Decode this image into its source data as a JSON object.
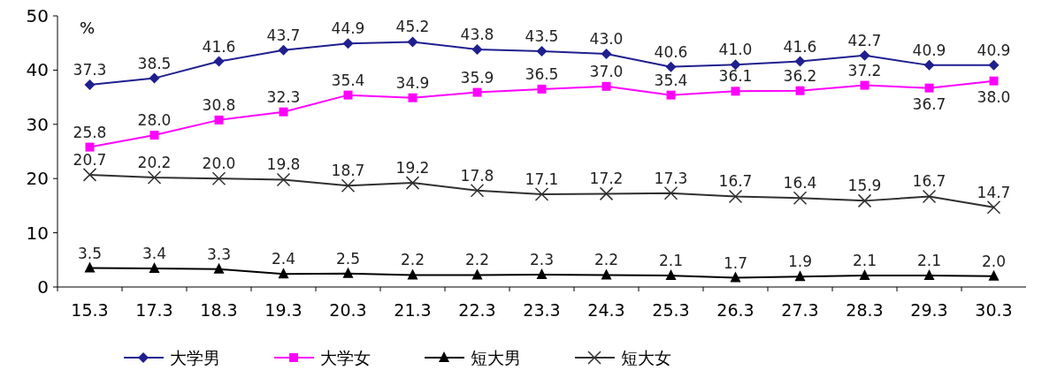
{
  "chart_data": {
    "type": "line",
    "categories": [
      "15.3",
      "17.3",
      "18.3",
      "19.3",
      "20.3",
      "21.3",
      "22.3",
      "23.3",
      "24.3",
      "25.3",
      "26.3",
      "27.3",
      "28.3",
      "29.3",
      "30.3"
    ],
    "ylim": [
      0,
      50
    ],
    "yticks": [
      0,
      10,
      20,
      30,
      40,
      50
    ],
    "legend": "bottom",
    "annotations": [
      "%"
    ],
    "series": [
      {
        "name": "大学男",
        "color": "#1f1f8f",
        "marker": "diamond",
        "values": [
          37.3,
          38.5,
          41.6,
          43.7,
          44.9,
          45.2,
          43.8,
          43.5,
          43.0,
          40.6,
          41.0,
          41.6,
          42.7,
          40.9,
          40.9
        ],
        "value_labels": [
          "37.3",
          "38.5",
          "41.6",
          "43.7",
          "44.9",
          "45.2",
          "43.8",
          "43.5",
          "43.0",
          "40.6",
          "41.0",
          "41.6",
          "42.7",
          "40.9",
          "40.9"
        ]
      },
      {
        "name": "大学女",
        "color": "#ff00ff",
        "marker": "square",
        "values": [
          25.8,
          28.0,
          30.8,
          32.3,
          35.4,
          34.9,
          35.9,
          36.5,
          37.0,
          35.4,
          36.1,
          36.2,
          37.2,
          36.7,
          38.0
        ],
        "value_labels": [
          "25.8",
          "28.0",
          "30.8",
          "32.3",
          "35.4",
          "34.9",
          "35.9",
          "36.5",
          "37.0",
          "35.4",
          "36.1",
          "36.2",
          "37.2",
          "36.7",
          "38.0"
        ]
      },
      {
        "name": "短大男",
        "color": "#000000",
        "marker": "triangle",
        "values": [
          3.5,
          3.4,
          3.3,
          2.4,
          2.5,
          2.2,
          2.2,
          2.3,
          2.2,
          2.1,
          1.7,
          1.9,
          2.1,
          2.1,
          2.0
        ],
        "value_labels": [
          "3.5",
          "3.4",
          "3.3",
          "2.4",
          "2.5",
          "2.2",
          "2.2",
          "2.3",
          "2.2",
          "2.1",
          "1.7",
          "1.9",
          "2.1",
          "2.1",
          "2.0"
        ]
      },
      {
        "name": "短大女",
        "color": "#303030",
        "marker": "cross",
        "values": [
          20.7,
          20.2,
          20.0,
          19.8,
          18.7,
          19.2,
          17.8,
          17.1,
          17.2,
          17.3,
          16.7,
          16.4,
          15.9,
          16.7,
          14.7
        ],
        "value_labels": [
          "20.7",
          "20.2",
          "20.0",
          "19.8",
          "18.7",
          "19.2",
          "17.8",
          "17.1",
          "17.2",
          "17.3",
          "16.7",
          "16.4",
          "15.9",
          "16.7",
          "14.7"
        ]
      }
    ]
  }
}
